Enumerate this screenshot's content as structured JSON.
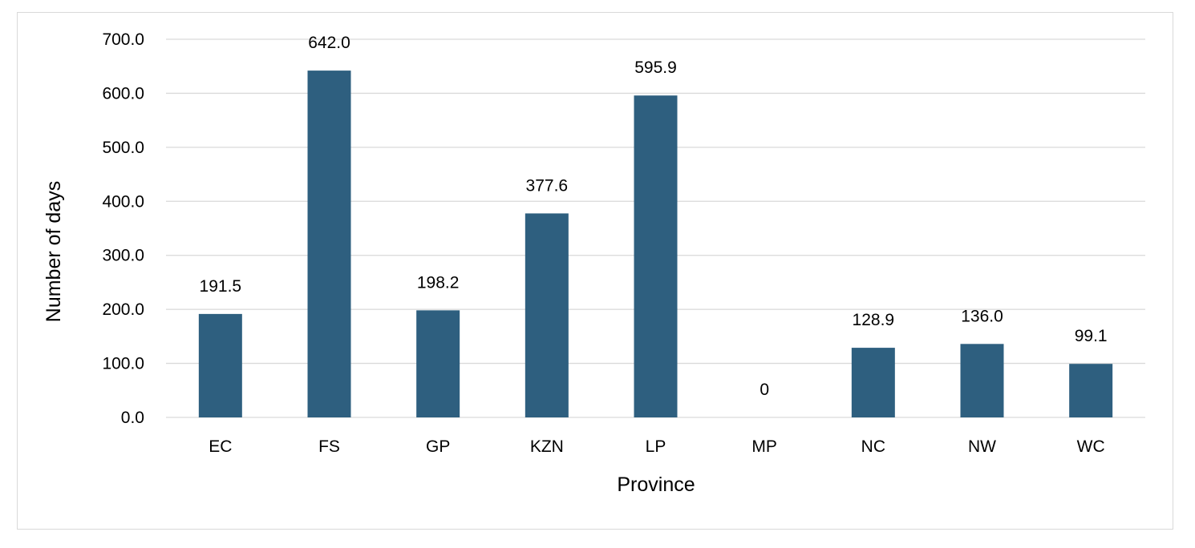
{
  "chart_data": {
    "type": "bar",
    "categories": [
      "EC",
      "FS",
      "GP",
      "KZN",
      "LP",
      "MP",
      "NC",
      "NW",
      "WC"
    ],
    "values": [
      191.5,
      642.0,
      198.2,
      377.6,
      595.9,
      0,
      128.9,
      136.0,
      99.1
    ],
    "data_labels": [
      "191.5",
      "642.0",
      "198.2",
      "377.6",
      "595.9",
      "0",
      "128.9",
      "136.0",
      "99.1"
    ],
    "title": "",
    "xlabel": "Province",
    "ylabel": "Number of days",
    "ylim": [
      0,
      700
    ],
    "yticks": [
      0,
      100,
      200,
      300,
      400,
      500,
      600,
      700
    ],
    "ytick_labels": [
      "0.0",
      "100.0",
      "200.0",
      "300.0",
      "400.0",
      "500.0",
      "600.0",
      "700.0"
    ],
    "grid": true,
    "legend": "none",
    "bar_color": "#2e5f7f",
    "grid_color": "#d9d9d9"
  }
}
